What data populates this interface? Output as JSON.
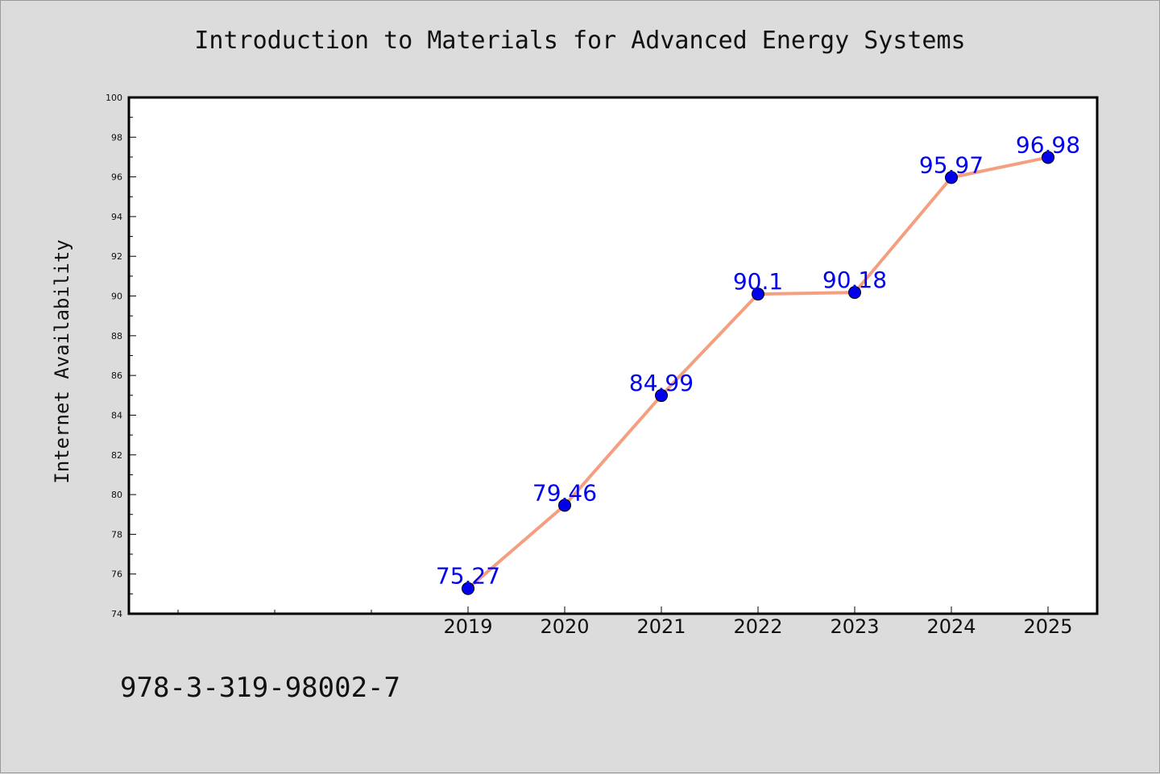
{
  "chart_data": {
    "type": "line",
    "title": "Introduction to Materials for Advanced Energy Systems",
    "xlabel": "",
    "ylabel": "Internet Availability",
    "categories": [
      "2019",
      "2020",
      "2021",
      "2022",
      "2023",
      "2024",
      "2025"
    ],
    "series": [
      {
        "values": [
          75.27,
          79.46,
          84.99,
          90.1,
          90.18,
          95.97,
          96.98
        ],
        "labels": [
          "75.27",
          "79.46",
          "84.99",
          "90.1",
          "90.18",
          "95.97",
          "96.98"
        ],
        "line_color": "#f4a080",
        "marker_color": "#0000ee",
        "label_color": "#0000ee"
      }
    ],
    "ylim": [
      74,
      100
    ],
    "yticks": [
      "74",
      "76",
      "78",
      "80",
      "82",
      "84",
      "86",
      "88",
      "90",
      "92",
      "94",
      "96",
      "98",
      "100"
    ],
    "grid": false,
    "legend": "none"
  },
  "footer": {
    "isbn": "978-3-319-98002-7"
  },
  "colors": {
    "background": "#dcdcdc",
    "plot_background": "#ffffff",
    "axis": "#000000"
  }
}
